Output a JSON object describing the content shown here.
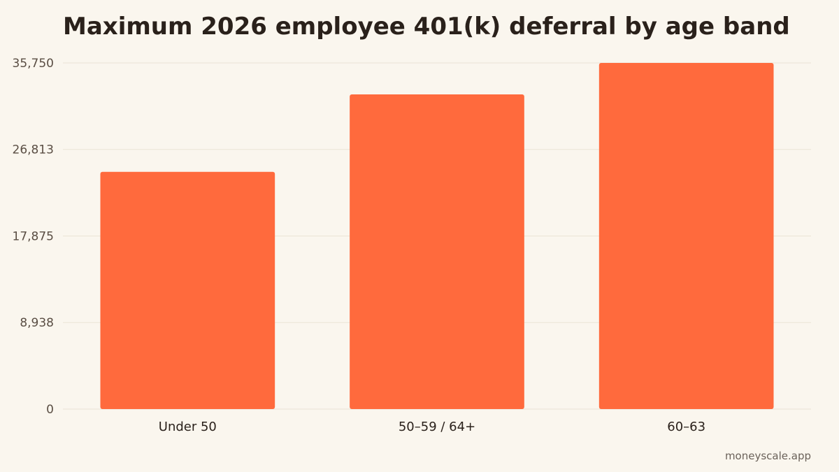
{
  "chart_data": {
    "type": "bar",
    "title": "Maximum 2026 employee 401(k) deferral by age band",
    "categories": [
      "Under 50",
      "50–59 / 64+",
      "60–63"
    ],
    "values": [
      24500,
      32500,
      35750
    ],
    "ylim": [
      0,
      35750
    ],
    "yticks": [
      "0",
      "8,938",
      "17,875",
      "26,813",
      "35,750"
    ],
    "ytick_values": [
      0,
      8938,
      17875,
      26813,
      35750
    ],
    "xlabel": "",
    "ylabel": "",
    "grid": true,
    "legend": "none",
    "colors": {
      "bar": "#ff6a3d",
      "grid": "#ebe3d5",
      "axis_text": "#5a4e44",
      "category_text": "#2a211b",
      "background": "#faf6ee"
    }
  },
  "source_label": "moneyscale.app"
}
